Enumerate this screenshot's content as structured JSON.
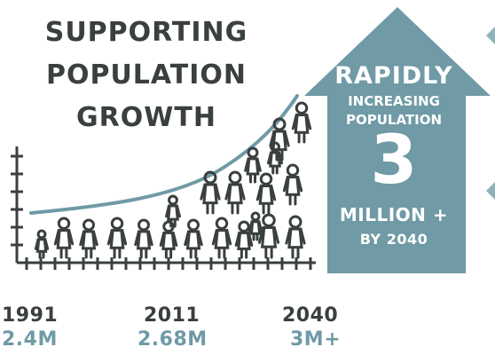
{
  "title": {
    "line1": "SUPPORTING",
    "line2": "POPULATION",
    "line3": "GROWTH"
  },
  "arrow": {
    "rapidly": "RAPIDLY",
    "increasing": "INCREASING",
    "population": "POPULATION",
    "number": "3",
    "million": "MILLION +",
    "by": "BY 2040"
  },
  "timeline": [
    {
      "year": "1991",
      "population": "2.4M"
    },
    {
      "year": "2011",
      "population": "2.68M"
    },
    {
      "year": "2040",
      "population": "3M+"
    }
  ],
  "colors": {
    "dark": "#3a3f40",
    "teal": "#6f9aa6",
    "arrow": "#6f9aa6",
    "curve": "#6f9aa6"
  }
}
